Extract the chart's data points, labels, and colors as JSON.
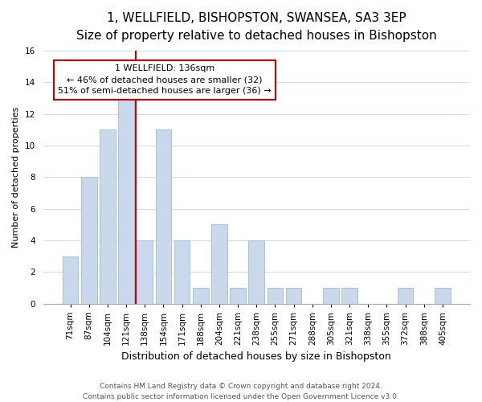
{
  "title": "1, WELLFIELD, BISHOPSTON, SWANSEA, SA3 3EP",
  "subtitle": "Size of property relative to detached houses in Bishopston",
  "xlabel": "Distribution of detached houses by size in Bishopston",
  "ylabel": "Number of detached properties",
  "bar_labels": [
    "71sqm",
    "87sqm",
    "104sqm",
    "121sqm",
    "138sqm",
    "154sqm",
    "171sqm",
    "188sqm",
    "204sqm",
    "221sqm",
    "238sqm",
    "255sqm",
    "271sqm",
    "288sqm",
    "305sqm",
    "321sqm",
    "338sqm",
    "355sqm",
    "372sqm",
    "388sqm",
    "405sqm"
  ],
  "bar_values": [
    3,
    8,
    11,
    13,
    4,
    11,
    4,
    1,
    5,
    1,
    4,
    1,
    1,
    0,
    1,
    1,
    0,
    0,
    1,
    0,
    1
  ],
  "bar_color": "#c9d9eb",
  "bar_edge_color": "#a8c0d6",
  "vline_x": 3.5,
  "vline_color": "#cc0000",
  "annotation_title": "1 WELLFIELD: 136sqm",
  "annotation_line1": "← 46% of detached houses are smaller (32)",
  "annotation_line2": "51% of semi-detached houses are larger (36) →",
  "annotation_box_color": "#ffffff",
  "annotation_box_edge": "#cc0000",
  "ylim": [
    0,
    16
  ],
  "yticks": [
    0,
    2,
    4,
    6,
    8,
    10,
    12,
    14,
    16
  ],
  "footer1": "Contains HM Land Registry data © Crown copyright and database right 2024.",
  "footer2": "Contains public sector information licensed under the Open Government Licence v3.0.",
  "background_color": "#ffffff",
  "grid_color": "#d0dce8",
  "title_fontsize": 11,
  "subtitle_fontsize": 9,
  "ylabel_fontsize": 8,
  "xlabel_fontsize": 9,
  "tick_fontsize": 7.5,
  "footer_fontsize": 6.5
}
